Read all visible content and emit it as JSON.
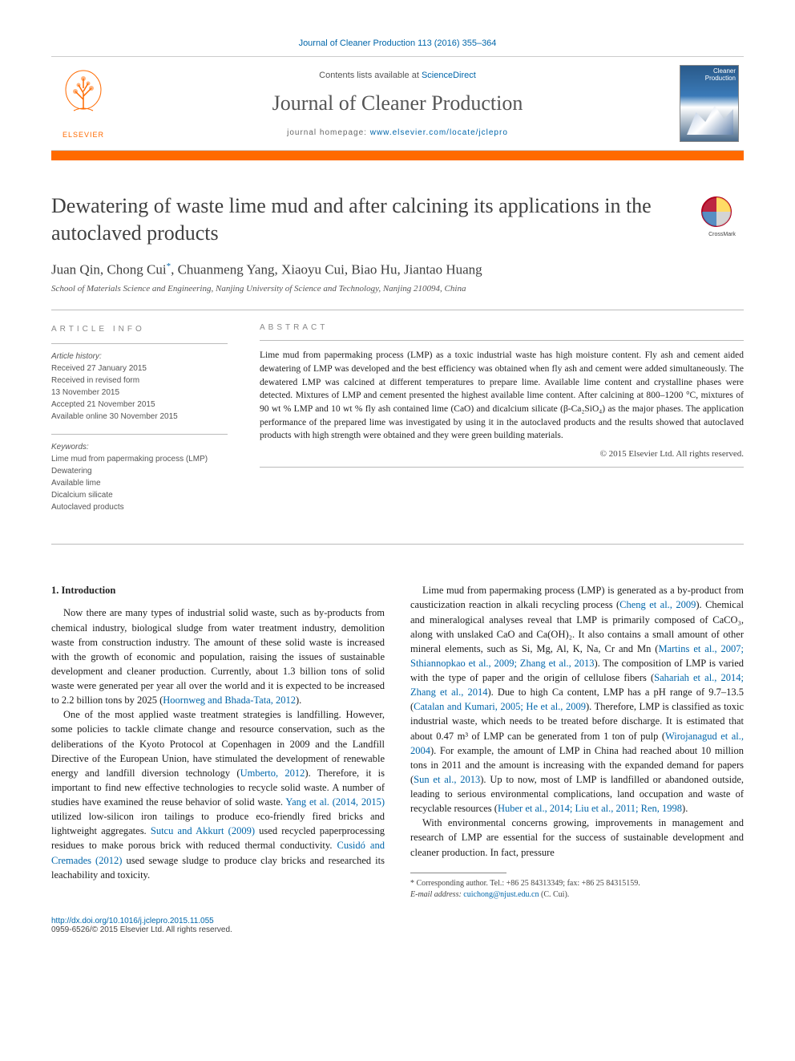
{
  "citation": {
    "journal_ref": "Journal of Cleaner Production 113 (2016) 355–364"
  },
  "masthead": {
    "publisher_name": "ELSEVIER",
    "contents_prefix": "Contents lists available at ",
    "contents_link": "ScienceDirect",
    "journal_name": "Journal of Cleaner Production",
    "homepage_prefix": "journal homepage: ",
    "homepage_url": "www.elsevier.com/locate/jclepro",
    "cover_title": "Cleaner Production"
  },
  "crossmark_label": "CrossMark",
  "article": {
    "title": "Dewatering of waste lime mud and after calcining its applications in the autoclaved products",
    "authors_html": "Juan Qin, Chong Cui<sup class='corr'>*</sup>, Chuanmeng Yang, Xiaoyu Cui, Biao Hu, Jiantao Huang",
    "affiliation": "School of Materials Science and Engineering, Nanjing University of Science and Technology, Nanjing 210094, China"
  },
  "info": {
    "heading": "ARTICLE INFO",
    "history_label": "Article history:",
    "history": [
      "Received 27 January 2015",
      "Received in revised form",
      "13 November 2015",
      "Accepted 21 November 2015",
      "Available online 30 November 2015"
    ],
    "keywords_label": "Keywords:",
    "keywords": [
      "Lime mud from papermaking process (LMP)",
      "Dewatering",
      "Available lime",
      "Dicalcium silicate",
      "Autoclaved products"
    ]
  },
  "abstract": {
    "heading": "ABSTRACT",
    "body": "Lime mud from papermaking process (LMP) as a toxic industrial waste has high moisture content. Fly ash and cement aided dewatering of LMP was developed and the best efficiency was obtained when fly ash and cement were added simultaneously. The dewatered LMP was calcined at different temperatures to prepare lime. Available lime content and crystalline phases were detected. Mixtures of LMP and cement presented the highest available lime content. After calcining at 800–1200 °C, mixtures of 90 wt % LMP and 10 wt % fly ash contained lime (CaO) and dicalcium silicate (β-Ca₂SiO₄) as the major phases. The application performance of the prepared lime was investigated by using it in the autoclaved products and the results showed that autoclaved products with high strength were obtained and they were green building materials.",
    "copyright": "© 2015 Elsevier Ltd. All rights reserved."
  },
  "body": {
    "section1_head": "1. Introduction",
    "p1": "Now there are many types of industrial solid waste, such as by-products from chemical industry, biological sludge from water treatment industry, demolition waste from construction industry. The amount of these solid waste is increased with the growth of economic and population, raising the issues of sustainable development and cleaner production. Currently, about 1.3 billion tons of solid waste were generated per year all over the world and it is expected to be increased to 2.2 billion tons by 2025 (",
    "p1_ref": "Hoornweg and Bhada-Tata, 2012",
    "p1_end": ").",
    "p2a": "One of the most applied waste treatment strategies is landfilling. However, some policies to tackle climate change and resource conservation, such as the deliberations of the Kyoto Protocol at Copenhagen in 2009 and the Landfill Directive of the European Union, have stimulated the development of renewable energy and landfill diversion technology (",
    "p2_ref1": "Umberto, 2012",
    "p2b": "). Therefore, it is important to find new effective technologies to recycle solid waste. A number of studies have examined the reuse behavior of solid waste. ",
    "p2_ref2": "Yang et al. (2014, 2015)",
    "p2c": " utilized low-silicon iron tailings to produce eco-friendly fired bricks and lightweight aggregates. ",
    "p2_ref3": "Sutcu and Akkurt (2009)",
    "p2d": " used recycled paperprocessing residues to make porous brick with reduced thermal conductivity. ",
    "p2_ref4": "Cusidó and Cremades (2012)",
    "p2e": " used sewage sludge to produce clay bricks and researched its leachability and toxicity.",
    "p3a": "Lime mud from papermaking process (LMP) is generated as a by-product from causticization reaction in alkali recycling process (",
    "p3_ref1": "Cheng et al., 2009",
    "p3b": "). Chemical and mineralogical analyses reveal that LMP is primarily composed of CaCO₃, along with unslaked CaO and Ca(OH)₂. It also contains a small amount of other mineral elements, such as Si, Mg, Al, K, Na, Cr and Mn (",
    "p3_ref2": "Martins et al., 2007; Sthiannopkao et al., 2009; Zhang et al., 2013",
    "p3c": "). The composition of LMP is varied with the type of paper and the origin of cellulose fibers (",
    "p3_ref3": "Sahariah et al., 2014; Zhang et al., 2014",
    "p3d": "). Due to high Ca content, LMP has a pH range of 9.7–13.5 (",
    "p3_ref4": "Catalan and Kumari, 2005; He et al., 2009",
    "p3e": "). Therefore, LMP is classified as toxic industrial waste, which needs to be treated before discharge. It is estimated that about 0.47 m³ of LMP can be generated from 1 ton of pulp (",
    "p3_ref5": "Wirojanagud et al., 2004",
    "p3f": "). For example, the amount of LMP in China had reached about 10 million tons in 2011 and the amount is increasing with the expanded demand for papers (",
    "p3_ref6": "Sun et al., 2013",
    "p3g": "). Up to now, most of LMP is landfilled or abandoned outside, leading to serious environmental complications, land occupation and waste of recyclable resources (",
    "p3_ref7": "Huber et al., 2014; Liu et al., 2011; Ren, 1998",
    "p3h": ").",
    "p4": "With environmental concerns growing, improvements in management and research of LMP are essential for the success of sustainable development and cleaner production. In fact, pressure"
  },
  "footnote": {
    "corr": "* Corresponding author. Tel.: +86 25 84313349; fax: +86 25 84315159.",
    "email_label": "E-mail address:",
    "email": "cuichong@njust.edu.cn",
    "email_suffix": "(C. Cui)."
  },
  "bottom": {
    "doi": "http://dx.doi.org/10.1016/j.jclepro.2015.11.055",
    "issn_line": "0959-6526/© 2015 Elsevier Ltd. All rights reserved."
  },
  "colors": {
    "orange": "#ff6a00",
    "link": "#0066aa",
    "text": "#1a1a1a"
  }
}
